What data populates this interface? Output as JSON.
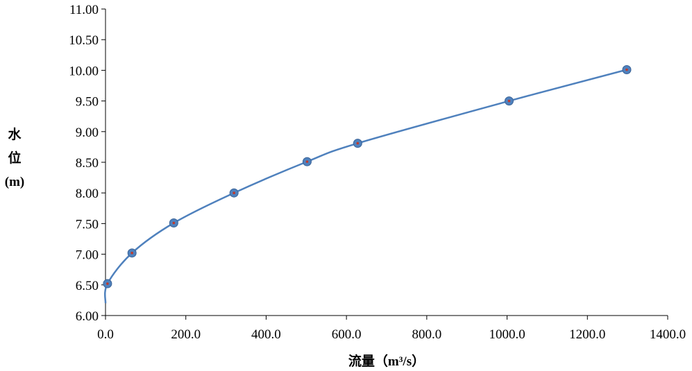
{
  "chart_data": {
    "type": "line",
    "title": "",
    "xlabel": {
      "text": "流量",
      "unit": "（m³/s）"
    },
    "ylabel": {
      "chars": [
        "水",
        "位"
      ],
      "unit": "(m)"
    },
    "xlim": [
      0,
      1400
    ],
    "ylim": [
      6.0,
      11.0
    ],
    "x_ticks": [
      0,
      200,
      400,
      600,
      800,
      1000,
      1200,
      1400
    ],
    "x_tick_labels": [
      "0.0",
      "200.0",
      "400.0",
      "600.0",
      "800.0",
      "1000.0",
      "1200.0",
      "1400.0"
    ],
    "y_ticks": [
      6.0,
      6.5,
      7.0,
      7.5,
      8.0,
      8.5,
      9.0,
      9.5,
      10.0,
      10.5,
      11.0
    ],
    "y_tick_labels": [
      "6.00",
      "6.50",
      "7.00",
      "7.50",
      "8.00",
      "8.50",
      "9.00",
      "9.50",
      "10.00",
      "10.50",
      "11.00"
    ],
    "grid": false,
    "legend": "none",
    "series": [
      {
        "x": [
          0,
          5,
          66,
          170,
          320,
          502,
          628,
          1005,
          1298
        ],
        "y": [
          6.2,
          6.52,
          7.02,
          7.51,
          8.0,
          8.51,
          8.81,
          9.5,
          10.01
        ],
        "markers": [
          false,
          true,
          true,
          true,
          true,
          true,
          true,
          true,
          true
        ],
        "line_color": "#4f81bd",
        "marker_fill": "#4f81bd",
        "marker_center": "#c0392b"
      }
    ]
  }
}
